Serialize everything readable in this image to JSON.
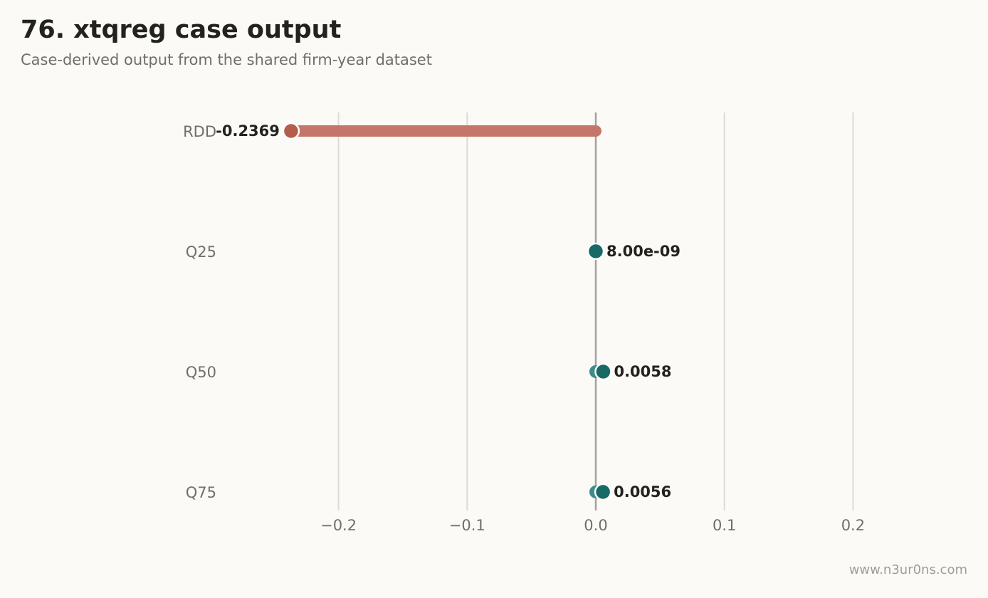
{
  "header": {
    "title": "76. xtqreg case output",
    "subtitle": "Case-derived output from the shared firm-year dataset"
  },
  "watermark": "www.n3ur0ns.com",
  "colors": {
    "background": "#fbfaf7",
    "negative_bar": "#c4766a",
    "negative_dot": "#b45d4c",
    "positive_dot": "#176a66",
    "positive_ring": "#3d8c87",
    "grid": "#dcdbd7",
    "zero_line": "#a3a29e"
  },
  "chart_data": {
    "type": "dot-lollipop",
    "categories": [
      "RDD",
      "Q25",
      "Q50",
      "Q75"
    ],
    "values": [
      -0.2369,
      8e-09,
      0.0058,
      0.0056
    ],
    "value_labels": [
      "-0.2369",
      "8.00e-09",
      "0.0058",
      "0.0056"
    ],
    "xlim": [
      -0.3,
      0.3
    ],
    "xticks": [
      -0.2,
      -0.1,
      0.0,
      0.1,
      0.2
    ],
    "xtick_labels": [
      "−0.2",
      "−0.1",
      "0.0",
      "0.1",
      "0.2"
    ],
    "grid": true,
    "zero_line": true
  }
}
